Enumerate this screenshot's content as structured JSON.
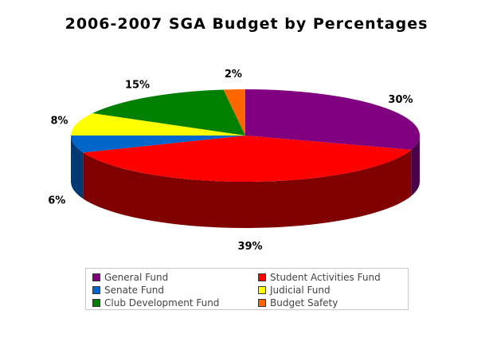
{
  "chart_data": {
    "type": "pie",
    "title": "2006-2007 SGA Budget by Percentages",
    "slices": [
      {
        "name": "General Fund",
        "value": 30,
        "label": "30%",
        "color": "#800080",
        "side": "#4b004b"
      },
      {
        "name": "Student Activities Fund",
        "value": 39,
        "label": "39%",
        "color": "#ff0000",
        "side": "#800000"
      },
      {
        "name": "Senate Fund",
        "value": 6,
        "label": "6%",
        "color": "#0066cc",
        "side": "#003a75"
      },
      {
        "name": "Judicial Fund",
        "value": 8,
        "label": "8%",
        "color": "#ffff00",
        "side": "#8a8a00"
      },
      {
        "name": "Club Development Fund",
        "value": 15,
        "label": "15%",
        "color": "#008000",
        "side": "#004000"
      },
      {
        "name": "Budget Safety",
        "value": 2,
        "label": "2%",
        "color": "#ff6600",
        "side": "#8a3700"
      }
    ],
    "legend": "bottom"
  }
}
